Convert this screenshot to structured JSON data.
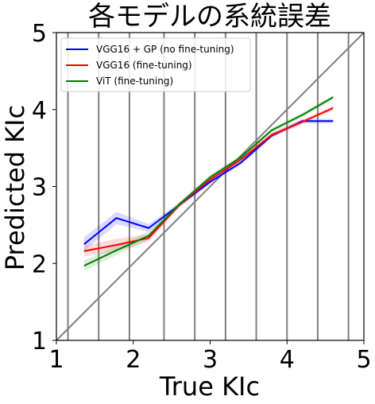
{
  "chart_data": {
    "type": "line",
    "title": "各モデルの系統誤差",
    "xlabel": "True KIc",
    "ylabel": "Predicted KIc",
    "xlim": [
      1,
      5
    ],
    "ylim": [
      1,
      5
    ],
    "xticks": [
      "1",
      "2",
      "3",
      "4",
      "5"
    ],
    "yticks": [
      "1",
      "2",
      "3",
      "4",
      "5"
    ],
    "legend_position": "top-left",
    "vertical_lines": [
      1.15,
      1.55,
      1.95,
      2.4,
      2.8,
      3.2,
      3.6,
      4.0,
      4.4,
      4.8
    ],
    "reference_line": {
      "x": [
        1,
        5
      ],
      "y": [
        1,
        5
      ],
      "color": "#808080"
    },
    "series": [
      {
        "name": "VGG16 + GP (no fine-tuning)",
        "color": "#0000ff",
        "x": [
          1.36,
          1.78,
          2.2,
          2.6,
          3.0,
          3.4,
          3.8,
          4.2,
          4.6
        ],
        "y": [
          2.25,
          2.59,
          2.46,
          2.76,
          3.06,
          3.31,
          3.66,
          3.85,
          3.85
        ],
        "band": [
          0.09,
          0.08,
          0.05,
          0.03,
          0.03,
          0.03,
          0.03,
          0.03,
          0.03
        ]
      },
      {
        "name": "VGG16 (fine-tuning)",
        "color": "#ff0000",
        "x": [
          1.36,
          1.78,
          2.2,
          2.6,
          3.0,
          3.4,
          3.8,
          4.2,
          4.6
        ],
        "y": [
          2.16,
          2.24,
          2.33,
          2.76,
          3.09,
          3.35,
          3.67,
          3.84,
          4.02
        ],
        "band": [
          0.07,
          0.08,
          0.05,
          0.03,
          0.03,
          0.03,
          0.03,
          0.03,
          0.03
        ]
      },
      {
        "name": "ViT (fine-tuning)",
        "color": "#008000",
        "x": [
          1.36,
          1.78,
          2.2,
          2.6,
          3.0,
          3.4,
          3.8,
          4.2,
          4.6
        ],
        "y": [
          1.97,
          2.17,
          2.36,
          2.77,
          3.12,
          3.38,
          3.73,
          3.93,
          4.16
        ],
        "band": [
          0.07,
          0.06,
          0.05,
          0.03,
          0.03,
          0.03,
          0.03,
          0.03,
          0.03
        ]
      }
    ]
  }
}
